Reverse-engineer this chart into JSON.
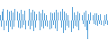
{
  "values": [
    3.5,
    -5.2,
    6.1,
    8.3,
    -7.4,
    5.8,
    -4.2,
    7.6,
    -8.9,
    6.4,
    -5.1,
    7.2,
    -6.8,
    5.5,
    -4.7,
    8.1,
    -7.3,
    6.2,
    -5.6,
    4.9,
    -6.3,
    7.8,
    -5.4,
    4.6,
    -3.9,
    6.7,
    -7.1,
    5.3,
    -4.5,
    8.4,
    -6.9,
    5.7,
    -4.3,
    7.5,
    -8.2,
    6.0,
    -5.8,
    4.4,
    -3.7,
    6.5,
    -7.6,
    5.1,
    -4.8,
    7.9,
    -6.6,
    5.2,
    -4.0,
    3.8,
    -5.3,
    6.8,
    -7.0,
    5.4,
    -6.1,
    4.7,
    -3.5,
    5.9,
    -6.4,
    7.3,
    -8.6,
    5.6,
    -4.1,
    6.2,
    -5.7,
    8.0,
    -9.3,
    6.5,
    -7.8,
    5.0,
    -4.4,
    3.6,
    -5.5,
    7.1,
    -8.7,
    9.4,
    -6.3,
    5.8,
    -4.6,
    3.9,
    -5.2,
    6.6,
    -7.4,
    5.3,
    -4.9,
    3.7,
    -3.1,
    5.6,
    -4.8,
    6.9,
    -7.5,
    -14.2,
    4.1,
    -3.3,
    5.8,
    -4.2,
    3.6,
    -2.9,
    4.7,
    -3.8,
    5.1,
    -4.0,
    3.4,
    -2.8,
    4.5,
    -3.6,
    5.0,
    -4.3,
    3.8,
    -3.0,
    4.2,
    -3.5
  ],
  "bar_color": "#5ba3d9",
  "background_color": "#ffffff",
  "bar_width": 0.8,
  "ylim_scale": 1.05
}
